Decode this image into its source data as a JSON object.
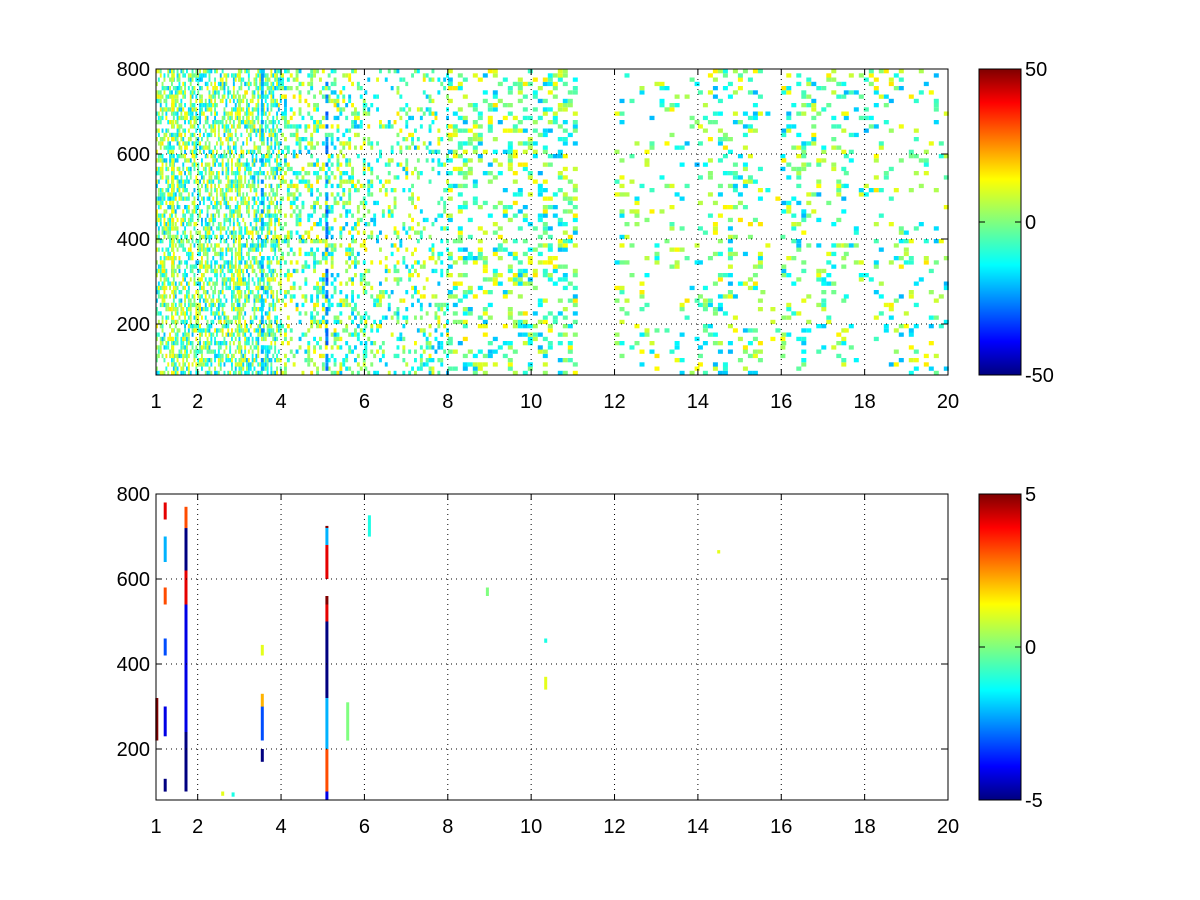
{
  "chart_data": [
    {
      "type": "heatmap",
      "title": "",
      "xlabel": "",
      "ylabel": "",
      "xlim": [
        1,
        20
      ],
      "ylim": [
        80,
        800
      ],
      "x_ticks": [
        "1",
        "2",
        "4",
        "6",
        "8",
        "10",
        "12",
        "14",
        "16",
        "18",
        "20"
      ],
      "y_ticks": [
        "200",
        "400",
        "600",
        "800"
      ],
      "grid": "on",
      "colormap": "jet",
      "colorbar": {
        "placement": "right",
        "range": [
          -50,
          50
        ],
        "ticks": [
          "-50",
          "0",
          "50"
        ]
      },
      "density_profile": [
        {
          "x": [
            1.0,
            4.0
          ],
          "density": 0.55
        },
        {
          "x": [
            4.0,
            6.0
          ],
          "density": 0.35
        },
        {
          "x": [
            6.0,
            8.0
          ],
          "density": 0.22
        },
        {
          "x": [
            8.0,
            11.0
          ],
          "density": 0.3
        },
        {
          "x": [
            11.0,
            12.0
          ],
          "density": 0.0
        },
        {
          "x": [
            12.0,
            14.0
          ],
          "density": 0.12
        },
        {
          "x": [
            14.0,
            15.5
          ],
          "density": 0.22
        },
        {
          "x": [
            15.5,
            16.0
          ],
          "density": 0.04
        },
        {
          "x": [
            16.0,
            17.5
          ],
          "density": 0.22
        },
        {
          "x": [
            17.5,
            20.0
          ],
          "density": 0.13
        }
      ],
      "streaks": [
        {
          "x": 3.55,
          "y": [
            80,
            800
          ],
          "value": -20
        },
        {
          "x": 5.1,
          "y": [
            80,
            800
          ],
          "value": -25
        },
        {
          "x": 1.4,
          "y": [
            80,
            800
          ],
          "value": 10
        },
        {
          "x": 3.0,
          "y": [
            80,
            800
          ],
          "value": 8
        }
      ],
      "value_range_typical": [
        -20,
        15
      ]
    },
    {
      "type": "heatmap",
      "title": "",
      "xlabel": "",
      "ylabel": "",
      "xlim": [
        1,
        20
      ],
      "ylim": [
        80,
        800
      ],
      "x_ticks": [
        "1",
        "2",
        "4",
        "6",
        "8",
        "10",
        "12",
        "14",
        "16",
        "18",
        "20"
      ],
      "y_ticks": [
        "200",
        "400",
        "600",
        "800"
      ],
      "grid": "on",
      "colormap": "jet",
      "colorbar": {
        "placement": "right",
        "range": [
          -5,
          5
        ],
        "ticks": [
          "-5",
          "0",
          "5"
        ]
      },
      "segments": [
        {
          "x": 1.02,
          "y": [
            220,
            320
          ],
          "value": 5
        },
        {
          "x": 1.22,
          "y": [
            100,
            130
          ],
          "value": -5
        },
        {
          "x": 1.22,
          "y": [
            230,
            300
          ],
          "value": -4
        },
        {
          "x": 1.22,
          "y": [
            420,
            460
          ],
          "value": -3
        },
        {
          "x": 1.22,
          "y": [
            540,
            580
          ],
          "value": 3
        },
        {
          "x": 1.22,
          "y": [
            640,
            700
          ],
          "value": -2
        },
        {
          "x": 1.22,
          "y": [
            740,
            780
          ],
          "value": 4
        },
        {
          "x": 1.72,
          "y": [
            100,
            240
          ],
          "value": -5
        },
        {
          "x": 1.72,
          "y": [
            240,
            540
          ],
          "value": -4
        },
        {
          "x": 1.72,
          "y": [
            540,
            620
          ],
          "value": 4
        },
        {
          "x": 1.72,
          "y": [
            620,
            720
          ],
          "value": -5
        },
        {
          "x": 1.72,
          "y": [
            720,
            770
          ],
          "value": 3
        },
        {
          "x": 3.55,
          "y": [
            170,
            200
          ],
          "value": -5
        },
        {
          "x": 3.55,
          "y": [
            220,
            300
          ],
          "value": -3
        },
        {
          "x": 3.55,
          "y": [
            300,
            330
          ],
          "value": 2
        },
        {
          "x": 3.55,
          "y": [
            420,
            445
          ],
          "value": 1
        },
        {
          "x": 5.1,
          "y": [
            80,
            100
          ],
          "value": -4
        },
        {
          "x": 5.1,
          "y": [
            100,
            200
          ],
          "value": 3
        },
        {
          "x": 5.1,
          "y": [
            200,
            320
          ],
          "value": -2
        },
        {
          "x": 5.1,
          "y": [
            320,
            500
          ],
          "value": -5
        },
        {
          "x": 5.1,
          "y": [
            500,
            540
          ],
          "value": 4
        },
        {
          "x": 5.1,
          "y": [
            540,
            560
          ],
          "value": 5
        },
        {
          "x": 5.1,
          "y": [
            600,
            680
          ],
          "value": 4
        },
        {
          "x": 5.1,
          "y": [
            680,
            720
          ],
          "value": -2
        },
        {
          "x": 5.1,
          "y": [
            720,
            725
          ],
          "value": 5
        },
        {
          "x": 5.6,
          "y": [
            220,
            310
          ],
          "value": 0
        },
        {
          "x": 6.12,
          "y": [
            700,
            750
          ],
          "value": -1
        },
        {
          "x": 8.95,
          "y": [
            560,
            580
          ],
          "value": 0
        },
        {
          "x": 10.35,
          "y": [
            340,
            370
          ],
          "value": 1
        },
        {
          "x": 10.35,
          "y": [
            450,
            460
          ],
          "value": -1
        },
        {
          "x": 14.5,
          "y": [
            660,
            668
          ],
          "value": 1
        },
        {
          "x": 2.6,
          "y": [
            90,
            100
          ],
          "value": 1
        },
        {
          "x": 2.85,
          "y": [
            88,
            98
          ],
          "value": -1
        }
      ]
    }
  ]
}
